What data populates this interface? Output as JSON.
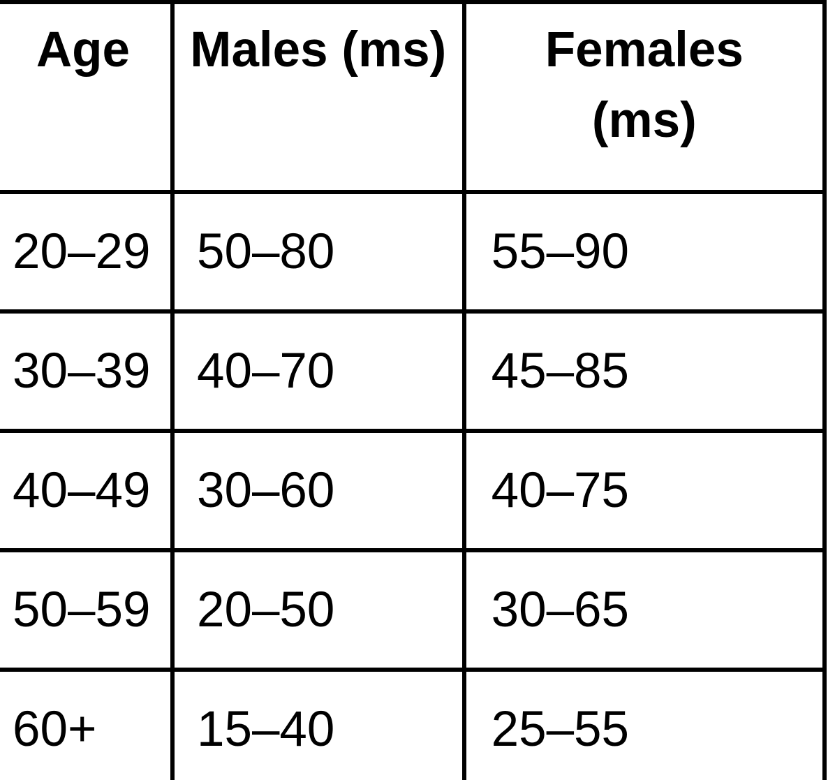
{
  "table": {
    "columns": [
      "Age",
      "Males (ms)",
      "Females (ms)"
    ],
    "rows": [
      [
        "20–29",
        "50–80",
        "55–90"
      ],
      [
        "30–39",
        "40–70",
        "45–85"
      ],
      [
        "40–49",
        "30–60",
        "40–75"
      ],
      [
        "50–59",
        "20–50",
        "30–65"
      ],
      [
        "60+",
        "15–40",
        "25–55"
      ]
    ],
    "colors": {
      "border": "#000000",
      "text": "#000000",
      "background": "#ffffff"
    }
  }
}
